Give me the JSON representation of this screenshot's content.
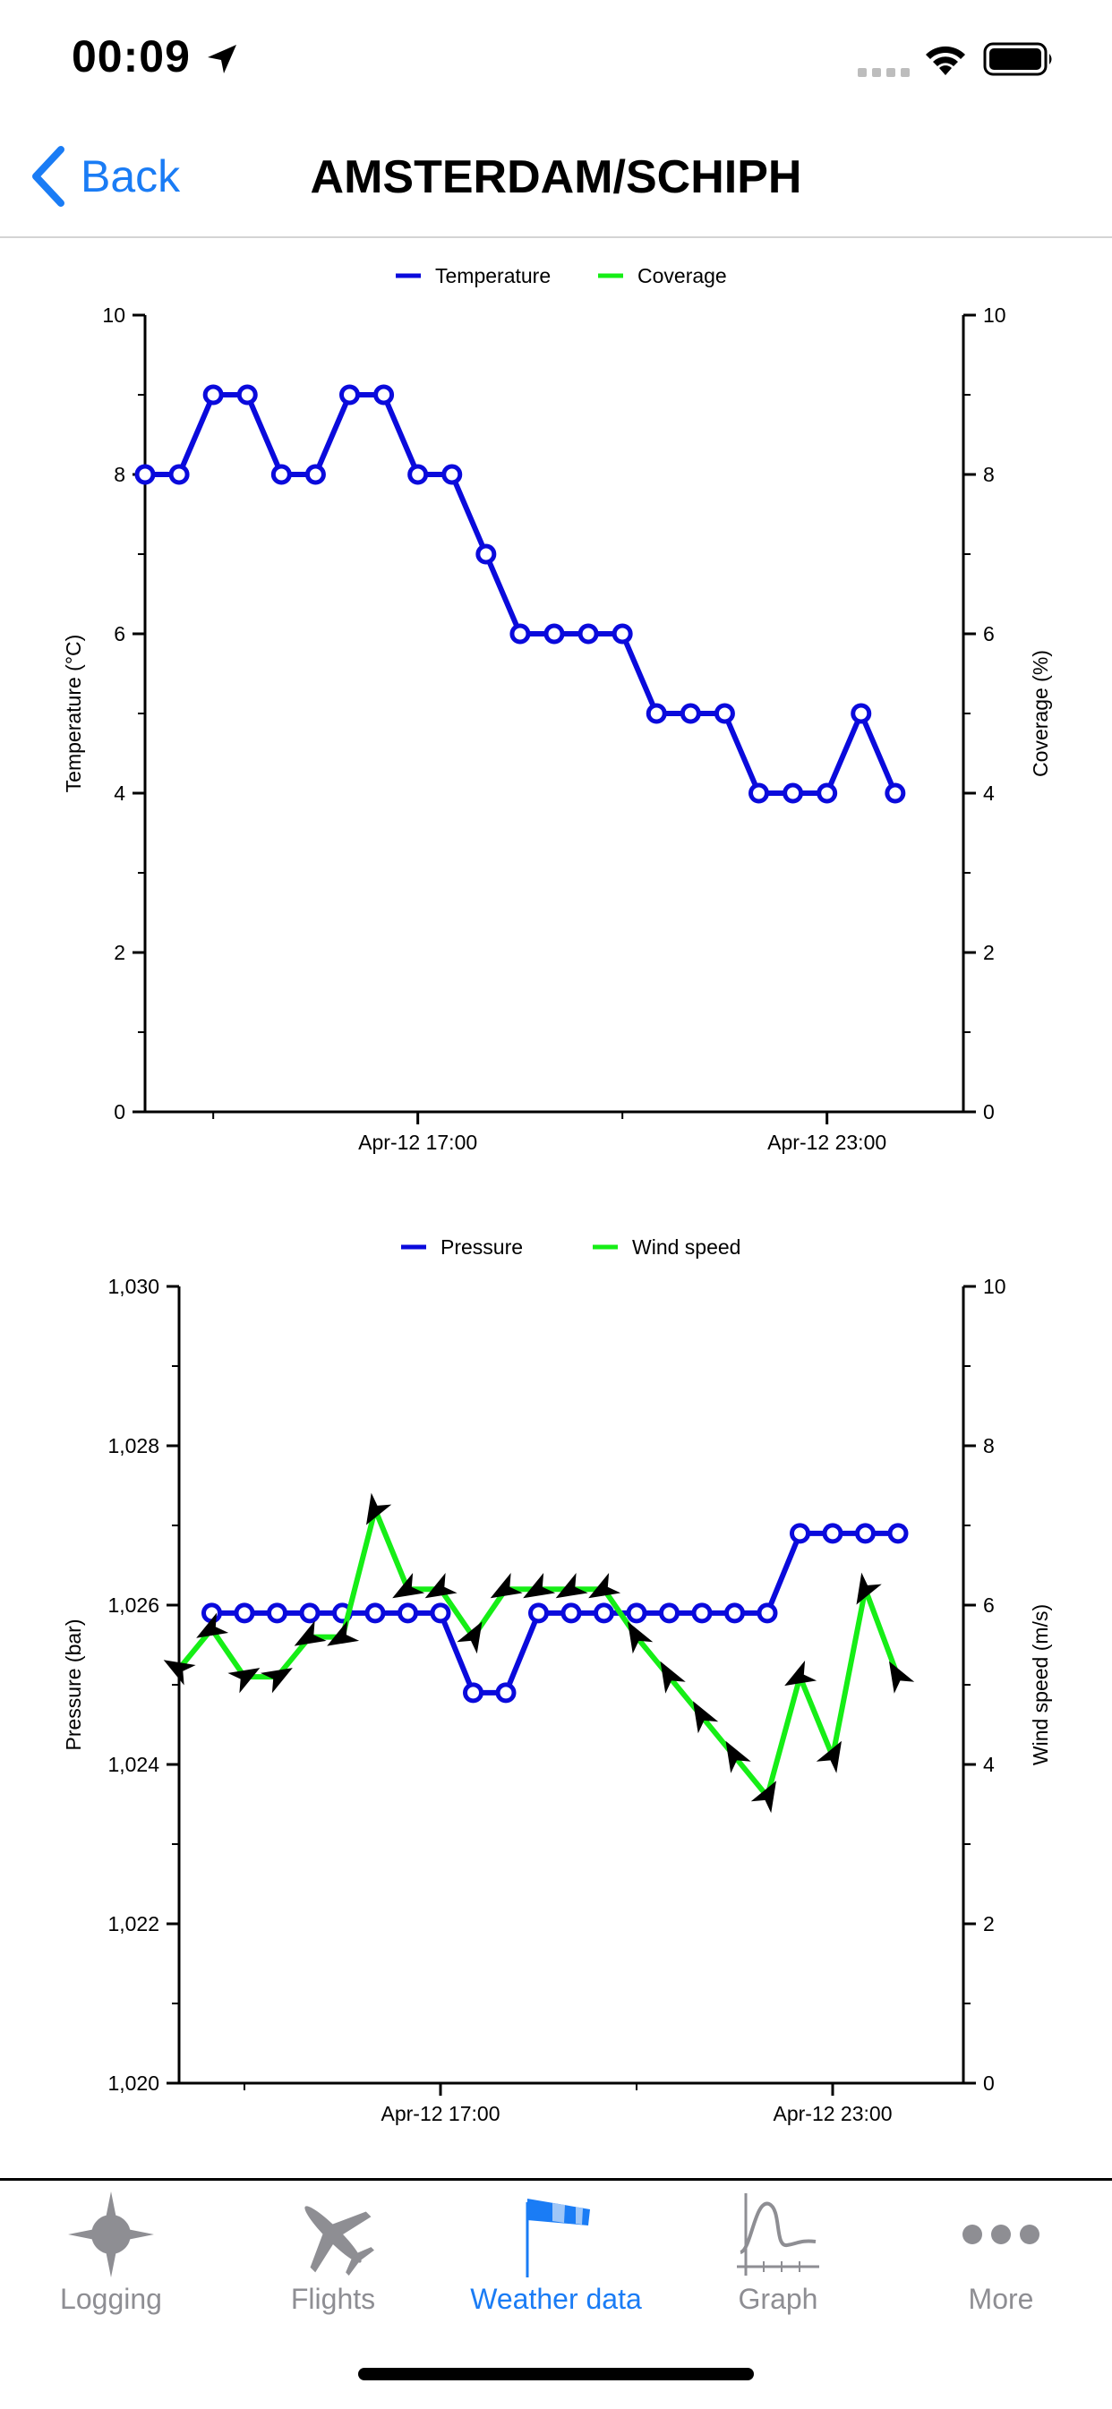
{
  "status_bar": {
    "time": "00:09",
    "icons": [
      "location-arrow-icon",
      "signal-icon",
      "wifi-icon",
      "battery-icon"
    ]
  },
  "nav": {
    "back_label": "Back",
    "title": "AMSTERDAM/SCHIPH"
  },
  "colors": {
    "accent": "#1a7cf5",
    "series_blue": "#0a0adc",
    "series_green": "#16ee16",
    "tab_inactive": "#8e8e93"
  },
  "chart_data": [
    {
      "type": "line",
      "legend": [
        "Temperature",
        "Coverage"
      ],
      "ylabel_left": "Temperature (°C)",
      "ylabel_right": "Coverage (%)",
      "ylim_left": [
        0,
        10
      ],
      "ylim_right": [
        0,
        10
      ],
      "yticks_left": [
        "0",
        "2",
        "4",
        "6",
        "8",
        "10"
      ],
      "yticks_right": [
        "0",
        "2",
        "4",
        "6",
        "8",
        "10"
      ],
      "xlim": [
        0,
        24
      ],
      "xticks": [
        {
          "x": 8,
          "label": "Apr-12 17:00"
        },
        {
          "x": 20,
          "label": "Apr-12 23:00"
        }
      ],
      "minor_x": [
        2,
        14
      ],
      "series": [
        {
          "name": "Temperature",
          "axis": "left",
          "color": "#0a0adc",
          "marker": "circle",
          "x": [
            0,
            1,
            2,
            3,
            4,
            5,
            6,
            7,
            8,
            9,
            10,
            11,
            12,
            13,
            14,
            15,
            16,
            17,
            18,
            19,
            20,
            21,
            22
          ],
          "values": [
            8,
            8,
            9,
            9,
            8,
            8,
            9,
            9,
            8,
            8,
            7,
            6,
            6,
            6,
            6,
            5,
            5,
            5,
            4,
            4,
            4,
            5,
            4
          ]
        },
        {
          "name": "Coverage",
          "axis": "right",
          "color": "#16ee16",
          "marker": "none",
          "x": [],
          "values": []
        }
      ]
    },
    {
      "type": "line",
      "legend": [
        "Pressure",
        "Wind speed"
      ],
      "ylabel_left": "Pressure (bar)",
      "ylabel_right": "Wind speed (m/s)",
      "ylim_left": [
        1020,
        1030
      ],
      "ylim_right": [
        0,
        10
      ],
      "yticks_left": [
        "1,020",
        "1,022",
        "1,024",
        "1,026",
        "1,028",
        "1,030"
      ],
      "yticks_right": [
        "0",
        "2",
        "4",
        "6",
        "8",
        "10"
      ],
      "xlim": [
        0,
        24
      ],
      "xticks": [
        {
          "x": 8,
          "label": "Apr-12 17:00"
        },
        {
          "x": 20,
          "label": "Apr-12 23:00"
        }
      ],
      "minor_x": [
        2,
        14
      ],
      "series": [
        {
          "name": "Pressure",
          "axis": "left",
          "color": "#0a0adc",
          "marker": "circle",
          "x": [
            1,
            2,
            3,
            4,
            5,
            6,
            7,
            8,
            9,
            10,
            11,
            12,
            13,
            14,
            15,
            16,
            17,
            18,
            19,
            20,
            21,
            22
          ],
          "values": [
            1025.9,
            1025.9,
            1025.9,
            1025.9,
            1025.9,
            1025.9,
            1025.9,
            1025.9,
            1024.9,
            1024.9,
            1025.9,
            1025.9,
            1025.9,
            1025.9,
            1025.9,
            1025.9,
            1025.9,
            1025.9,
            1026.9,
            1026.9,
            1026.9,
            1026.9
          ]
        },
        {
          "name": "Wind speed",
          "axis": "right",
          "color": "#16ee16",
          "marker": "wind-arrow",
          "x": [
            0,
            1,
            2,
            3,
            4,
            5,
            6,
            7,
            8,
            9,
            10,
            11,
            12,
            13,
            14,
            15,
            16,
            17,
            18,
            19,
            20,
            21,
            22
          ],
          "values": [
            5.2,
            5.7,
            5.1,
            5.1,
            5.6,
            5.6,
            7.2,
            6.2,
            6.2,
            5.6,
            6.2,
            6.2,
            6.2,
            6.2,
            5.6,
            5.1,
            4.6,
            4.1,
            3.6,
            5.1,
            4.1,
            6.2,
            5.1
          ],
          "directions_deg": [
            300,
            240,
            60,
            60,
            240,
            240,
            210,
            240,
            240,
            30,
            240,
            240,
            240,
            240,
            330,
            330,
            330,
            330,
            30,
            240,
            30,
            210,
            330
          ]
        }
      ]
    }
  ],
  "tab_bar": {
    "tabs": [
      {
        "label": "Logging",
        "icon": "compass-star-icon",
        "active": false
      },
      {
        "label": "Flights",
        "icon": "airplane-icon",
        "active": false
      },
      {
        "label": "Weather data",
        "icon": "windsock-icon",
        "active": true
      },
      {
        "label": "Graph",
        "icon": "graph-icon",
        "active": false
      },
      {
        "label": "More",
        "icon": "more-dots-icon",
        "active": false
      }
    ]
  }
}
